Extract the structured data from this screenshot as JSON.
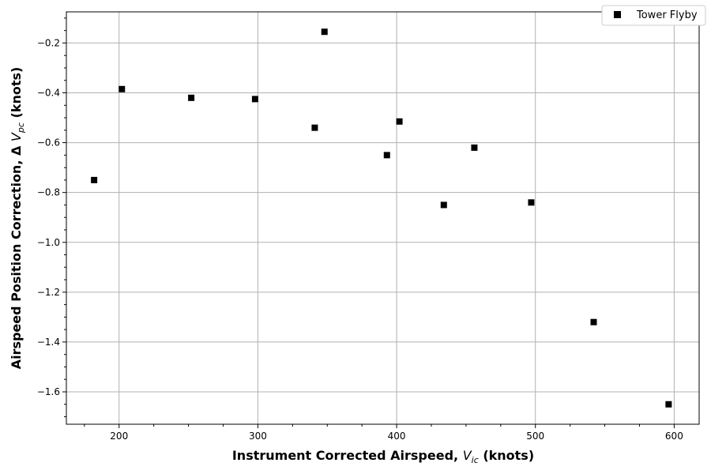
{
  "chart_data": {
    "type": "scatter",
    "xlabel": {
      "main": "Instrument Corrected Airspeed, ",
      "symbol": "V",
      "sub": "ic",
      "tail": " (knots)"
    },
    "ylabel": {
      "main": "Airspeed Position Correction, Δ ",
      "symbol": "V",
      "sub": "pc",
      "tail": " (knots)"
    },
    "xlim": [
      162,
      618
    ],
    "ylim": [
      -1.73,
      -0.075
    ],
    "x_ticks": [
      200,
      300,
      400,
      500,
      600
    ],
    "x_tick_labels": [
      "200",
      "300",
      "400",
      "500",
      "600"
    ],
    "y_ticks": [
      -0.2,
      -0.4,
      -0.6,
      -0.8,
      -1.0,
      -1.2,
      -1.4,
      -1.6
    ],
    "y_tick_labels": [
      "−0.2",
      "−0.4",
      "−0.6",
      "−0.8",
      "−1.0",
      "−1.2",
      "−1.4",
      "−1.6"
    ],
    "grid": true,
    "legend_position": "top-right",
    "marker_color": "#000000",
    "series": [
      {
        "name": "Tower Flyby",
        "marker": "square",
        "points": [
          {
            "x": 182,
            "y": -0.75
          },
          {
            "x": 202,
            "y": -0.385
          },
          {
            "x": 252,
            "y": -0.42
          },
          {
            "x": 298,
            "y": -0.425
          },
          {
            "x": 341,
            "y": -0.54
          },
          {
            "x": 348,
            "y": -0.155
          },
          {
            "x": 393,
            "y": -0.65
          },
          {
            "x": 402,
            "y": -0.515
          },
          {
            "x": 434,
            "y": -0.85
          },
          {
            "x": 456,
            "y": -0.62
          },
          {
            "x": 497,
            "y": -0.84
          },
          {
            "x": 542,
            "y": -1.32
          },
          {
            "x": 596,
            "y": -1.65
          }
        ]
      }
    ]
  }
}
